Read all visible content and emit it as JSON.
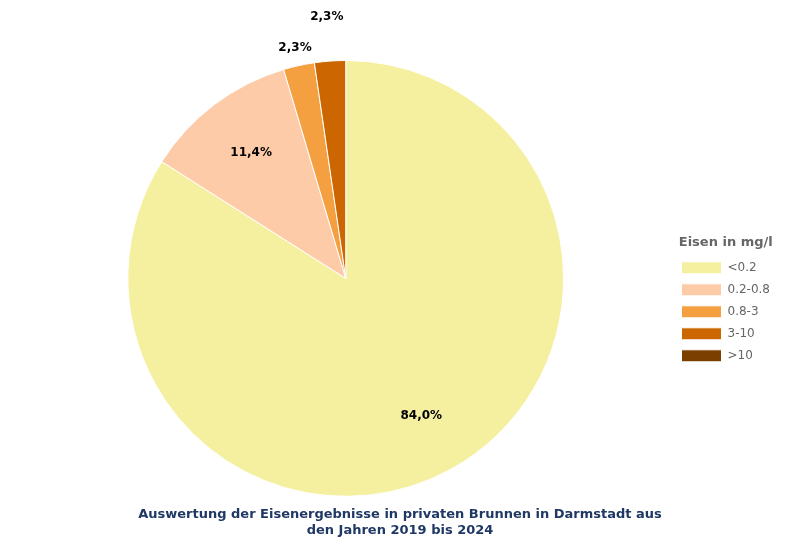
{
  "chart_data": {
    "type": "pie",
    "title": "Auswertung der Eisenergebnisse in privaten Brunnen in Darmstadt aus\nden Jahren 2019 bis 2024",
    "legend_title": "Eisen in mg/l",
    "categories": [
      "<0.2",
      "0.2-0.8",
      "0.8-3",
      "3-10",
      ">10"
    ],
    "values": [
      84.0,
      11.4,
      2.3,
      2.3,
      0.0
    ],
    "value_labels": [
      "84,0%",
      "11,4%",
      "2,3%",
      "2,3%",
      null
    ],
    "colors": [
      "#F5F0A0",
      "#FECBA8",
      "#F4A040",
      "#CC6600",
      "#7B3F00"
    ],
    "data_labels": true,
    "legend": "right"
  }
}
